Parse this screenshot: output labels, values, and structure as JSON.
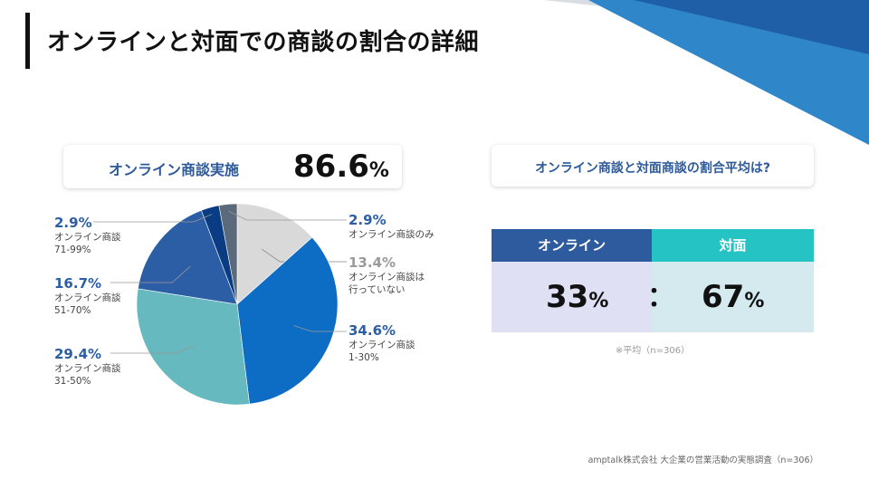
{
  "title": "オンラインと対面での商談の割合の詳細",
  "online_summary": {
    "label": "オンライン商談実施",
    "value": "86.6",
    "unit": "%"
  },
  "ratio_card": {
    "label": "オンライン商談と対面商談の割合平均は?"
  },
  "ratio_table": {
    "online_header": "オンライン",
    "face_header": "対面",
    "online_value": "33",
    "face_value": "67",
    "unit": "%",
    "separator": "：",
    "note": "※平均（n=306）"
  },
  "source": "amptalk株式会社 大企業の営業活動の実態調査（n=306）",
  "labels": {
    "s0": {
      "pct": "13.4%",
      "desc1": "オンライン商談は",
      "desc2": "行っていない"
    },
    "s1": {
      "pct": "34.6%",
      "desc1": "オンライン商談",
      "desc2": "1-30%"
    },
    "s2": {
      "pct": "29.4%",
      "desc1": "オンライン商談",
      "desc2": "31-50%"
    },
    "s3": {
      "pct": "16.7%",
      "desc1": "オンライン商談",
      "desc2": "51-70%"
    },
    "s4": {
      "pct": "2.9%",
      "desc1": "オンライン商談",
      "desc2": "71-99%"
    },
    "s5": {
      "pct": "2.9%",
      "desc1": "オンライン商談のみ",
      "desc2": ""
    }
  },
  "chart_data": {
    "type": "pie",
    "title": "",
    "categories": [
      "オンライン商談は行っていない",
      "オンライン商談 1-30%",
      "オンライン商談 31-50%",
      "オンライン商談 51-70%",
      "オンライン商談 71-99%",
      "オンライン商談のみ"
    ],
    "values": [
      13.4,
      34.6,
      29.4,
      16.7,
      2.9,
      2.9
    ],
    "colors": [
      "#d9d9d9",
      "#0d6cc4",
      "#65b9bf",
      "#2c5ea6",
      "#0a3c83",
      "#5a6a7a"
    ],
    "label_colors": [
      "#9a9a9a",
      "#2c5ea6",
      "#2c5ea6",
      "#2c5ea6",
      "#2c5ea6",
      "#2c5ea6"
    ]
  }
}
